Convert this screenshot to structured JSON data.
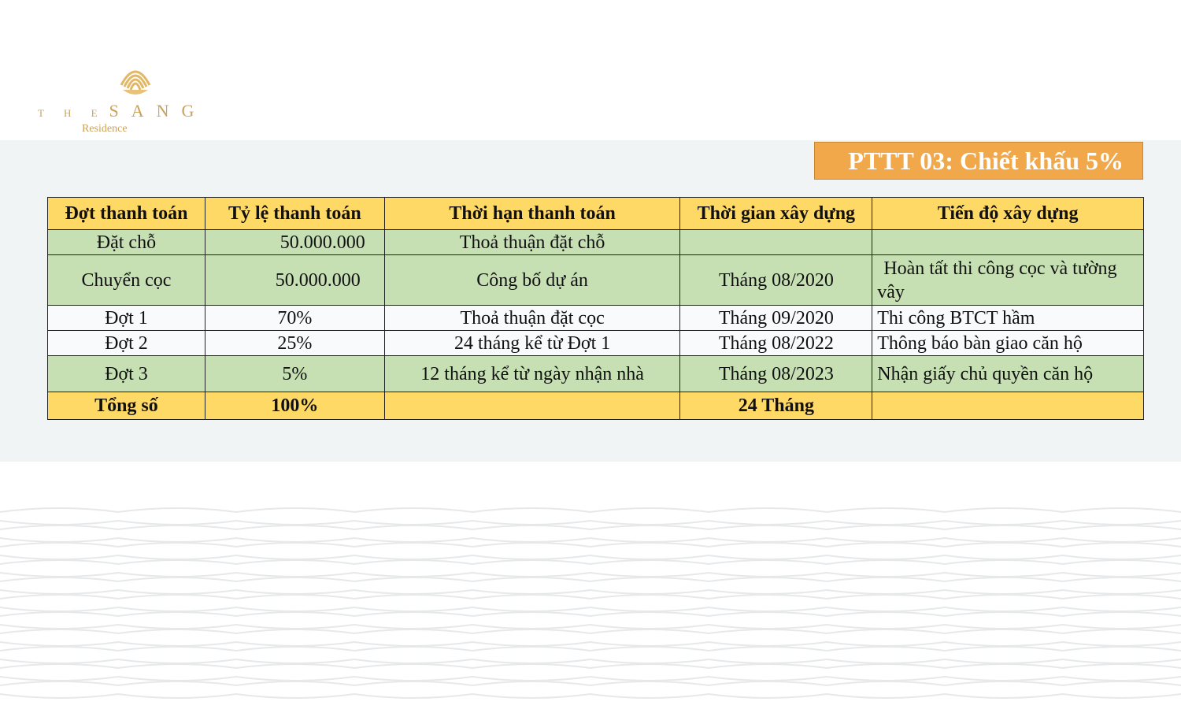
{
  "brand": {
    "logo_the": "T H E",
    "logo_sang": "SANG",
    "logo_sub": "Residence",
    "color": "#c9a25b"
  },
  "badge": {
    "text": "PTTT 03: Chiết khấu 5%",
    "color": "#f0a84a"
  },
  "table": {
    "headers": [
      "Đợt thanh toán",
      "Tỷ lệ thanh toán",
      "Thời hạn thanh toán",
      "Thời gian xây dựng",
      "Tiến độ xây dựng"
    ],
    "rows": [
      [
        "Đặt chỗ",
        "50.000.000",
        "Thoả thuận đặt chỗ",
        "",
        ""
      ],
      [
        "Chuyển cọc",
        "50.000.000",
        "Công bố dự án",
        "Tháng 08/2020",
        "Hoàn tất thi công cọc và tường vây"
      ],
      [
        "Đợt 1",
        "70%",
        "Thoả thuận đặt cọc",
        "Tháng 09/2020",
        "Thi công BTCT hầm"
      ],
      [
        "Đợt 2",
        "25%",
        "24 tháng kể từ Đợt 1",
        "Tháng 08/2022",
        "Thông báo bàn giao căn hộ"
      ],
      [
        "Đợt 3",
        "5%",
        "12 tháng kể từ ngày nhận nhà",
        "Tháng 08/2023",
        "Nhận giấy chủ quyền căn hộ"
      ]
    ],
    "total": [
      "Tổng số",
      "100%",
      "",
      "24 Tháng",
      ""
    ],
    "colors": {
      "header": "#ffd966",
      "green": "#c6e0b4",
      "white": "#f8fafb"
    }
  }
}
